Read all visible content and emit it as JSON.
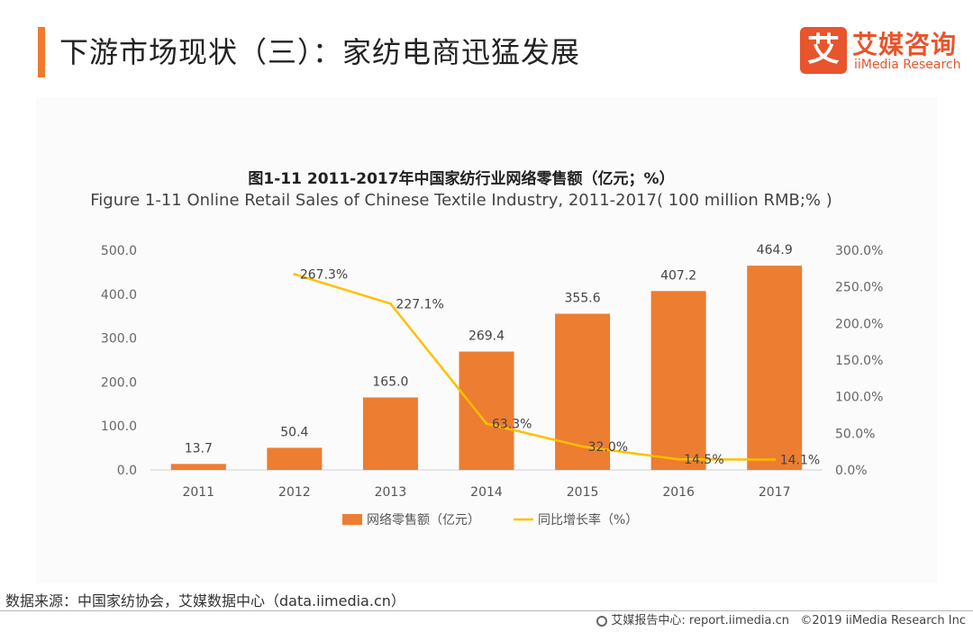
{
  "header": {
    "title": "下游市场现状（三）：家纺电商迅猛发展"
  },
  "logo": {
    "mark": "艾",
    "name": "艾媒咨询",
    "subtitle": "iiMedia Research"
  },
  "source": "数据来源：中国家纺协会，艾媒数据中心（data.iimedia.cn）",
  "footer": {
    "report_center": "艾媒报告中心: report.iimedia.cn",
    "copyright": "©2019  iiMedia Research  Inc"
  },
  "colors": {
    "bar": "#ed7d31",
    "line": "#ffc000",
    "accent": "#f07a2d",
    "brand": "#e8542b"
  },
  "chart_data": {
    "type": "bar",
    "title": "图1-11 2011-2017年中国家纺行业网络零售额（亿元；%）",
    "subtitle": "Figure 1-11 Online Retail Sales of Chinese Textile Industry, 2011-2017( 100 million RMB;% )",
    "categories": [
      "2011",
      "2012",
      "2013",
      "2014",
      "2015",
      "2016",
      "2017"
    ],
    "series": [
      {
        "name": "网络零售额（亿元）",
        "type": "bar",
        "axis": "left",
        "values": [
          13.7,
          50.4,
          165.0,
          269.4,
          355.6,
          407.2,
          464.9
        ],
        "labels": [
          "13.7",
          "50.4",
          "165.0",
          "269.4",
          "355.6",
          "407.2",
          "464.9"
        ]
      },
      {
        "name": "同比增长率（%）",
        "type": "line",
        "axis": "right",
        "values": [
          null,
          267.3,
          227.1,
          63.3,
          32.0,
          14.5,
          14.1
        ],
        "labels": [
          "",
          "267.3%",
          "227.1%",
          "63.3%",
          "32.0%",
          "14.5%",
          "14.1%"
        ]
      }
    ],
    "y_left": {
      "min": 0,
      "max": 500,
      "ticks": [
        "0.0",
        "100.0",
        "200.0",
        "300.0",
        "400.0",
        "500.0"
      ]
    },
    "y_right": {
      "min": 0,
      "max": 300,
      "ticks": [
        "0.0%",
        "50.0%",
        "100.0%",
        "150.0%",
        "200.0%",
        "250.0%",
        "300.0%"
      ]
    },
    "legend_position": "bottom",
    "grid": false
  }
}
